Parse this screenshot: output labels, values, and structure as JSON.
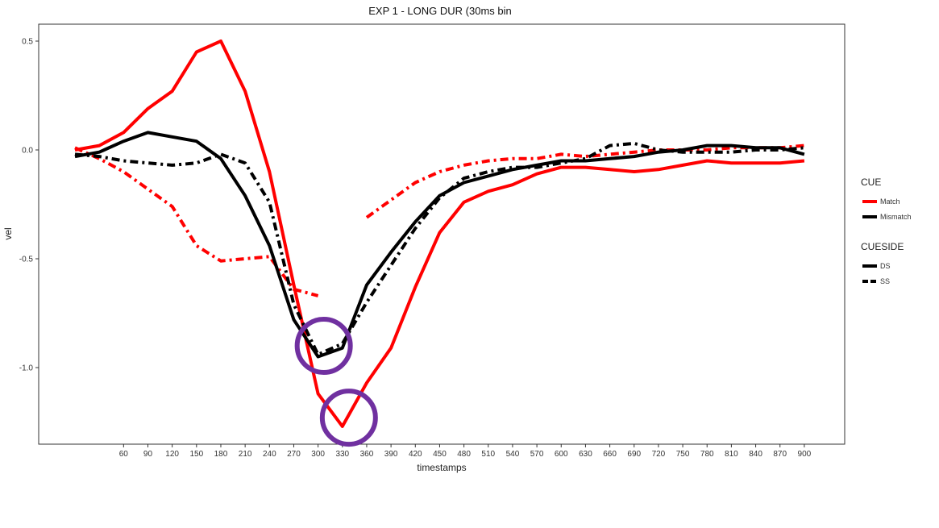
{
  "chart_data": {
    "type": "line",
    "title": "EXP 1 - LONG DUR (30ms bin",
    "xlabel": "timestamps",
    "ylabel": "vel",
    "xlim": [
      0,
      920
    ],
    "ylim": [
      -1.35,
      0.55
    ],
    "x_ticks": [
      60,
      90,
      120,
      150,
      180,
      210,
      240,
      270,
      300,
      330,
      360,
      390,
      420,
      450,
      480,
      510,
      540,
      570,
      600,
      630,
      660,
      690,
      720,
      750,
      780,
      810,
      840,
      870,
      900
    ],
    "y_ticks": [
      0.5,
      0.0,
      -0.5,
      -1.0
    ],
    "y_tick_labels": [
      "0.5",
      "0.0",
      "-0.5",
      "-1.0"
    ],
    "grid": false,
    "colors": {
      "Match": "#ff0000",
      "Mismatch": "#000000",
      "highlight": "#7030a0"
    },
    "legend": {
      "placement": "right",
      "groups": [
        {
          "title": "CUE",
          "entries": [
            {
              "label": "Match",
              "key": "Match"
            },
            {
              "label": "Mismatch",
              "key": "Mismatch"
            }
          ]
        },
        {
          "title": "CUESIDE",
          "entries": [
            {
              "label": "DS",
              "key": "DS"
            },
            {
              "label": "SS",
              "key": "SS"
            }
          ]
        }
      ]
    },
    "series": [
      {
        "cue": "Match",
        "cueside": "DS",
        "points": [
          [
            0,
            0.0
          ],
          [
            30,
            0.02
          ],
          [
            60,
            0.08
          ],
          [
            90,
            0.19
          ],
          [
            120,
            0.27
          ],
          [
            150,
            0.45
          ],
          [
            180,
            0.5
          ],
          [
            210,
            0.27
          ],
          [
            240,
            -0.1
          ],
          [
            270,
            -0.62
          ],
          [
            300,
            -1.12
          ],
          [
            330,
            -1.27
          ],
          [
            360,
            -1.07
          ],
          [
            390,
            -0.91
          ],
          [
            420,
            -0.63
          ],
          [
            450,
            -0.38
          ],
          [
            480,
            -0.24
          ],
          [
            510,
            -0.19
          ],
          [
            540,
            -0.16
          ],
          [
            570,
            -0.11
          ],
          [
            600,
            -0.08
          ],
          [
            630,
            -0.08
          ],
          [
            660,
            -0.09
          ],
          [
            690,
            -0.1
          ],
          [
            720,
            -0.09
          ],
          [
            750,
            -0.07
          ],
          [
            780,
            -0.05
          ],
          [
            810,
            -0.06
          ],
          [
            840,
            -0.06
          ],
          [
            870,
            -0.06
          ],
          [
            900,
            -0.05
          ]
        ]
      },
      {
        "cue": "Match",
        "cueside": "SS",
        "segments": [
          [
            [
              0,
              0.01
            ],
            [
              30,
              -0.04
            ],
            [
              60,
              -0.1
            ],
            [
              90,
              -0.18
            ],
            [
              120,
              -0.26
            ],
            [
              150,
              -0.44
            ],
            [
              180,
              -0.51
            ],
            [
              210,
              -0.5
            ],
            [
              240,
              -0.49
            ],
            [
              270,
              -0.64
            ],
            [
              300,
              -0.67
            ]
          ],
          [
            [
              360,
              -0.31
            ],
            [
              390,
              -0.23
            ],
            [
              420,
              -0.15
            ],
            [
              450,
              -0.1
            ],
            [
              480,
              -0.07
            ],
            [
              510,
              -0.05
            ],
            [
              540,
              -0.04
            ],
            [
              570,
              -0.04
            ],
            [
              600,
              -0.02
            ],
            [
              630,
              -0.03
            ],
            [
              660,
              -0.02
            ],
            [
              690,
              -0.01
            ],
            [
              720,
              0.0
            ],
            [
              750,
              0.0
            ],
            [
              780,
              0.0
            ],
            [
              810,
              0.01
            ],
            [
              840,
              0.01
            ],
            [
              870,
              0.01
            ],
            [
              900,
              0.02
            ]
          ]
        ]
      },
      {
        "cue": "Mismatch",
        "cueside": "DS",
        "points": [
          [
            0,
            -0.03
          ],
          [
            30,
            -0.01
          ],
          [
            60,
            0.04
          ],
          [
            90,
            0.08
          ],
          [
            120,
            0.06
          ],
          [
            150,
            0.04
          ],
          [
            180,
            -0.04
          ],
          [
            210,
            -0.21
          ],
          [
            240,
            -0.44
          ],
          [
            270,
            -0.78
          ],
          [
            300,
            -0.95
          ],
          [
            330,
            -0.91
          ],
          [
            360,
            -0.62
          ],
          [
            390,
            -0.47
          ],
          [
            420,
            -0.33
          ],
          [
            450,
            -0.21
          ],
          [
            480,
            -0.15
          ],
          [
            510,
            -0.12
          ],
          [
            540,
            -0.09
          ],
          [
            570,
            -0.07
          ],
          [
            600,
            -0.05
          ],
          [
            630,
            -0.05
          ],
          [
            660,
            -0.04
          ],
          [
            690,
            -0.03
          ],
          [
            720,
            -0.01
          ],
          [
            750,
            0.0
          ],
          [
            780,
            0.02
          ],
          [
            810,
            0.02
          ],
          [
            840,
            0.01
          ],
          [
            870,
            0.01
          ],
          [
            900,
            -0.02
          ]
        ]
      },
      {
        "cue": "Mismatch",
        "cueside": "SS",
        "points": [
          [
            0,
            -0.02
          ],
          [
            30,
            -0.03
          ],
          [
            60,
            -0.05
          ],
          [
            90,
            -0.06
          ],
          [
            120,
            -0.07
          ],
          [
            150,
            -0.06
          ],
          [
            180,
            -0.02
          ],
          [
            210,
            -0.06
          ],
          [
            240,
            -0.24
          ],
          [
            270,
            -0.71
          ],
          [
            300,
            -0.94
          ],
          [
            330,
            -0.89
          ],
          [
            360,
            -0.7
          ],
          [
            390,
            -0.53
          ],
          [
            420,
            -0.36
          ],
          [
            450,
            -0.22
          ],
          [
            480,
            -0.13
          ],
          [
            510,
            -0.1
          ],
          [
            540,
            -0.08
          ],
          [
            570,
            -0.08
          ],
          [
            600,
            -0.06
          ],
          [
            630,
            -0.04
          ],
          [
            660,
            0.02
          ],
          [
            690,
            0.03
          ],
          [
            720,
            0.0
          ],
          [
            750,
            -0.01
          ],
          [
            780,
            -0.01
          ],
          [
            810,
            -0.01
          ],
          [
            840,
            0.0
          ],
          [
            870,
            0.0
          ],
          [
            900,
            0.01
          ]
        ]
      }
    ],
    "annotations": [
      {
        "type": "circle",
        "x": 307,
        "y": -0.9,
        "color": "highlight"
      },
      {
        "type": "circle",
        "x": 338,
        "y": -1.23,
        "color": "highlight"
      }
    ]
  }
}
